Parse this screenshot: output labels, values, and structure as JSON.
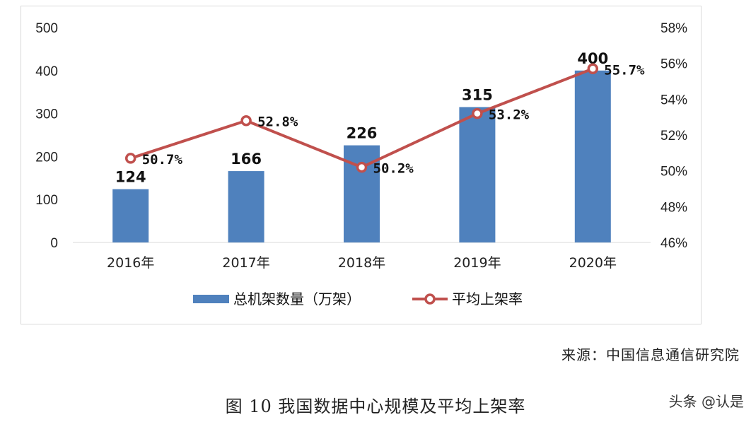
{
  "chart_data": {
    "type": "bar",
    "categories": [
      "2016年",
      "2017年",
      "2018年",
      "2019年",
      "2020年"
    ],
    "series": [
      {
        "name": "总机架数量（万架）",
        "type": "bar",
        "axis": "left",
        "values": [
          124,
          166,
          226,
          315,
          400
        ],
        "labels": [
          "124",
          "166",
          "226",
          "315",
          "400"
        ]
      },
      {
        "name": "平均上架率",
        "type": "line",
        "axis": "right",
        "values": [
          50.7,
          52.8,
          50.2,
          53.2,
          55.7
        ],
        "labels": [
          "50.7%",
          "52.8%",
          "50.2%",
          "53.2%",
          "55.7%"
        ]
      }
    ],
    "left_axis": {
      "ylim": [
        0,
        500
      ],
      "ticks": [
        "0",
        "100",
        "200",
        "300",
        "400",
        "500"
      ]
    },
    "right_axis": {
      "ylim": [
        46,
        58
      ],
      "ticks": [
        "46%",
        "48%",
        "50%",
        "52%",
        "54%",
        "56%",
        "58%"
      ]
    },
    "legend": "bottom",
    "grid": false,
    "colors": {
      "bar": "#4f81bd",
      "line": "#c0504d",
      "marker_fill": "#ffffff"
    }
  },
  "source": "来源：中国信息通信研究院",
  "caption": "图 10 我国数据中心规模及平均上架率",
  "brand": "头条 @认是"
}
